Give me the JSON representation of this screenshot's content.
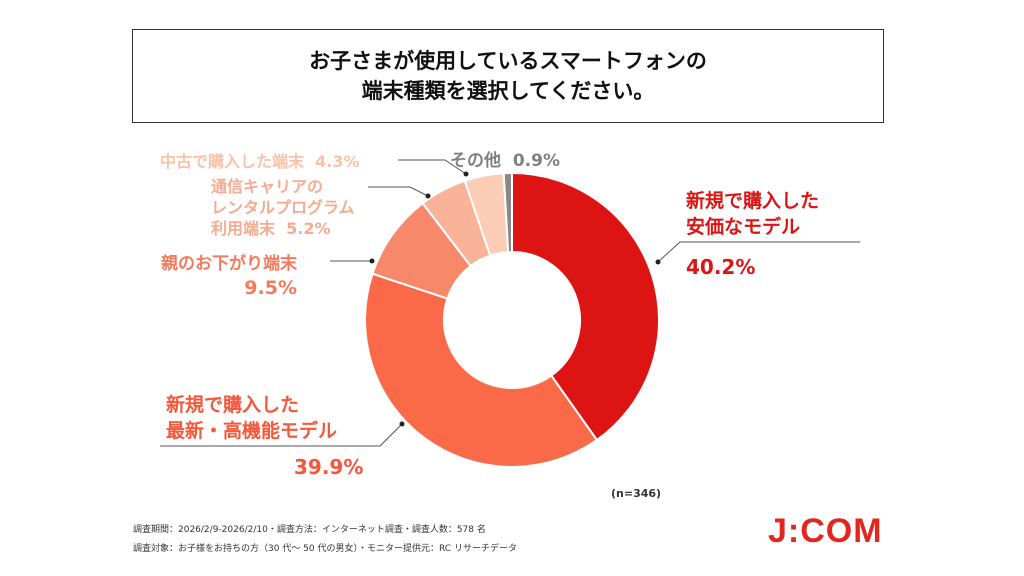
{
  "title": {
    "line1": "お子さまが使用しているスマートフォンの",
    "line2": "端末種類を選択してください。"
  },
  "chart_data": {
    "type": "pie",
    "donut": true,
    "slices": [
      {
        "label_lines": [
          "新規で購入した",
          "安価なモデル"
        ],
        "value": 40.2,
        "value_label": "40.2%",
        "color": "#dc1414"
      },
      {
        "label_lines": [
          "新規で購入した",
          "最新・高機能モデル"
        ],
        "value": 39.9,
        "value_label": "39.9%",
        "color": "#fb6a48"
      },
      {
        "label_lines": [
          "親のお下がり端末"
        ],
        "value": 9.5,
        "value_label": "9.5%",
        "color": "#f7896a"
      },
      {
        "label_lines": [
          "通信キャリアの",
          "レンタルプログラム",
          "利用端末"
        ],
        "value": 5.2,
        "value_label": "5.2%",
        "color": "#f9b398"
      },
      {
        "label_lines": [
          "中古で購入した端末"
        ],
        "value": 4.3,
        "value_label": "4.3%",
        "color": "#fbcdb6"
      },
      {
        "label_lines": [
          "その他"
        ],
        "value": 0.9,
        "value_label": "0.9%",
        "color": "#888888"
      }
    ],
    "n_label": "(n=346)"
  },
  "footer": {
    "line1": "調査期間：2026/2/9-2026/2/10・調査方法：インターネット調査・調査人数：578 名",
    "line2": "調査対象：お子様をお持ちの方（30 代～ 50 代の男女）・モニター提供元：RC リサーチデータ"
  },
  "logo": "J:COM"
}
